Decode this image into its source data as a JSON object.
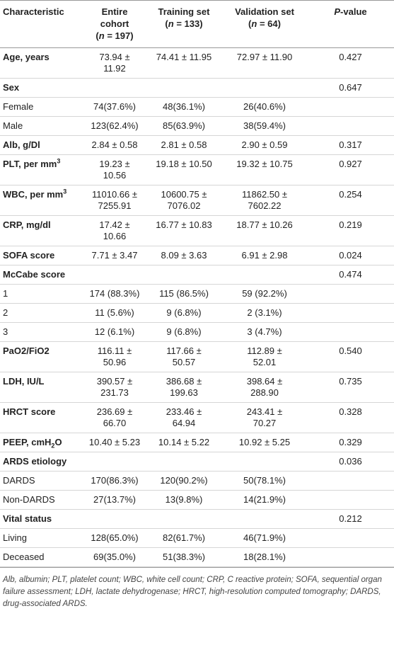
{
  "table": {
    "header": [
      {
        "lines": [
          [
            {
              "text": "Characteristic"
            }
          ]
        ]
      },
      {
        "lines": [
          [
            {
              "text": "Entire cohort"
            }
          ],
          [
            {
              "text": "("
            },
            {
              "text": "n",
              "italic": true
            },
            {
              "text": " = 197)"
            }
          ]
        ]
      },
      {
        "lines": [
          [
            {
              "text": "Training set"
            }
          ],
          [
            {
              "text": "("
            },
            {
              "text": "n",
              "italic": true
            },
            {
              "text": " = 133)"
            }
          ]
        ]
      },
      {
        "lines": [
          [
            {
              "text": "Validation set"
            }
          ],
          [
            {
              "text": "("
            },
            {
              "text": "n",
              "italic": true
            },
            {
              "text": " = 64)"
            }
          ]
        ]
      },
      {
        "lines": [
          [
            {
              "text": "P",
              "italic": true
            },
            {
              "text": "-value"
            }
          ]
        ]
      }
    ],
    "rows": [
      {
        "label": {
          "text": "Age, years"
        },
        "bold": true,
        "cells": [
          "73.94 ± 11.92",
          "74.41 ± 11.95",
          "72.97 ± 11.90",
          "0.427"
        ]
      },
      {
        "label": {
          "text": "Sex"
        },
        "bold": true,
        "cells": [
          null,
          null,
          null,
          "0.647"
        ]
      },
      {
        "label": {
          "text": "Female"
        },
        "bold": false,
        "cells": [
          "74(37.6%)",
          "48(36.1%)",
          "26(40.6%)",
          null
        ]
      },
      {
        "label": {
          "text": "Male"
        },
        "bold": false,
        "cells": [
          "123(62.4%)",
          "85(63.9%)",
          "38(59.4%)",
          null
        ]
      },
      {
        "label": {
          "text": "Alb, g/Dl"
        },
        "bold": true,
        "cells": [
          "2.84 ± 0.58",
          "2.81 ± 0.58",
          "2.90 ± 0.59",
          "0.317"
        ]
      },
      {
        "label": {
          "text": "PLT, per mm",
          "sup": "3"
        },
        "bold": true,
        "cells": [
          "19.23 ± 10.56",
          "19.18 ± 10.50",
          "19.32 ± 10.75",
          "0.927"
        ]
      },
      {
        "label": {
          "text": "WBC, per mm",
          "sup": "3"
        },
        "bold": true,
        "cells": [
          "11010.66 ± 7255.91",
          "10600.75 ± 7076.02",
          "11862.50 ± 7602.22",
          "0.254"
        ]
      },
      {
        "label": {
          "text": "CRP, mg/dl"
        },
        "bold": true,
        "cells": [
          "17.42 ± 10.66",
          "16.77 ± 10.83",
          "18.77 ± 10.26",
          "0.219"
        ]
      },
      {
        "label": {
          "text": "SOFA score"
        },
        "bold": true,
        "cells": [
          "7.71 ± 3.47",
          "8.09 ± 3.63",
          "6.91 ± 2.98",
          "0.024"
        ]
      },
      {
        "label": {
          "text": "McCabe score"
        },
        "bold": true,
        "cells": [
          null,
          null,
          null,
          "0.474"
        ]
      },
      {
        "label": {
          "text": "1"
        },
        "bold": false,
        "cells": [
          "174 (88.3%)",
          "115 (86.5%)",
          "59 (92.2%)",
          null
        ]
      },
      {
        "label": {
          "text": "2"
        },
        "bold": false,
        "cells": [
          "11 (5.6%)",
          "9 (6.8%)",
          "2 (3.1%)",
          null
        ]
      },
      {
        "label": {
          "text": "3"
        },
        "bold": false,
        "cells": [
          "12 (6.1%)",
          "9 (6.8%)",
          "3 (4.7%)",
          null
        ]
      },
      {
        "label": {
          "text": "PaO2/FiO2"
        },
        "bold": true,
        "cells": [
          "116.11 ± 50.96",
          "117.66 ± 50.57",
          "112.89 ± 52.01",
          "0.540"
        ]
      },
      {
        "label": {
          "text": "LDH, IU/L"
        },
        "bold": true,
        "cells": [
          "390.57 ± 231.73",
          "386.68 ± 199.63",
          "398.64 ± 288.90",
          "0.735"
        ]
      },
      {
        "label": {
          "text": "HRCT score"
        },
        "bold": true,
        "cells": [
          "236.69 ± 66.70",
          "233.46 ± 64.94",
          "243.41 ± 70.27",
          "0.328"
        ]
      },
      {
        "label": {
          "text": "PEEP, cmH",
          "sub": "2",
          "after": "O"
        },
        "bold": true,
        "cells": [
          "10.40 ± 5.23",
          "10.14 ± 5.22",
          "10.92 ± 5.25",
          "0.329"
        ]
      },
      {
        "label": {
          "text": "ARDS etiology"
        },
        "bold": true,
        "cells": [
          null,
          null,
          null,
          "0.036"
        ]
      },
      {
        "label": {
          "text": "DARDS"
        },
        "bold": false,
        "cells": [
          "170(86.3%)",
          "120(90.2%)",
          "50(78.1%)",
          null
        ]
      },
      {
        "label": {
          "text": "Non-DARDS"
        },
        "bold": false,
        "cells": [
          "27(13.7%)",
          "13(9.8%)",
          "14(21.9%)",
          null
        ]
      },
      {
        "label": {
          "text": "Vital status"
        },
        "bold": true,
        "cells": [
          null,
          null,
          null,
          "0.212"
        ]
      },
      {
        "label": {
          "text": "Living"
        },
        "bold": false,
        "cells": [
          "128(65.0%)",
          "82(61.7%)",
          "46(71.9%)",
          null
        ]
      },
      {
        "label": {
          "text": "Deceased"
        },
        "bold": false,
        "cells": [
          "69(35.0%)",
          "51(38.3%)",
          "18(28.1%)",
          null
        ]
      }
    ]
  },
  "footnote": "Alb, albumin; PLT, platelet count; WBC, white cell count; CRP, C reactive protein; SOFA, sequential organ failure assessment; LDH, lactate dehydrogenase; HRCT, high-resolution computed tomography; DARDS, drug-associated ARDS."
}
